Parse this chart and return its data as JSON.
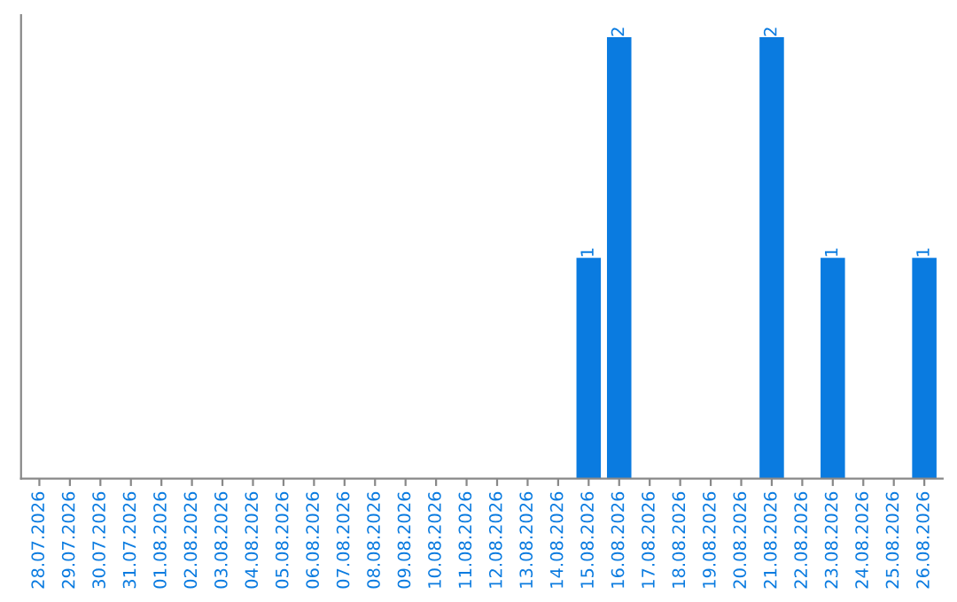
{
  "chart_data": {
    "type": "bar",
    "categories": [
      "28.07.2026",
      "29.07.2026",
      "30.07.2026",
      "31.07.2026",
      "01.08.2026",
      "02.08.2026",
      "03.08.2026",
      "04.08.2026",
      "05.08.2026",
      "06.08.2026",
      "07.08.2026",
      "08.08.2026",
      "09.08.2026",
      "10.08.2026",
      "11.08.2026",
      "12.08.2026",
      "13.08.2026",
      "14.08.2026",
      "15.08.2026",
      "16.08.2026",
      "17.08.2026",
      "18.08.2026",
      "19.08.2026",
      "20.08.2026",
      "21.08.2026",
      "22.08.2026",
      "23.08.2026",
      "24.08.2026",
      "25.08.2026",
      "26.08.2026"
    ],
    "values": [
      null,
      null,
      null,
      null,
      null,
      null,
      null,
      null,
      null,
      null,
      null,
      null,
      null,
      null,
      null,
      null,
      null,
      null,
      1,
      2,
      null,
      null,
      null,
      null,
      2,
      null,
      1,
      null,
      null,
      1
    ],
    "value_labels": [
      null,
      null,
      null,
      null,
      null,
      null,
      null,
      null,
      null,
      null,
      null,
      null,
      null,
      null,
      null,
      null,
      null,
      null,
      "1",
      "2",
      null,
      null,
      null,
      null,
      "2",
      null,
      "1",
      null,
      null,
      "1"
    ],
    "color": "#0a7be0",
    "grid": false,
    "legend": false
  }
}
